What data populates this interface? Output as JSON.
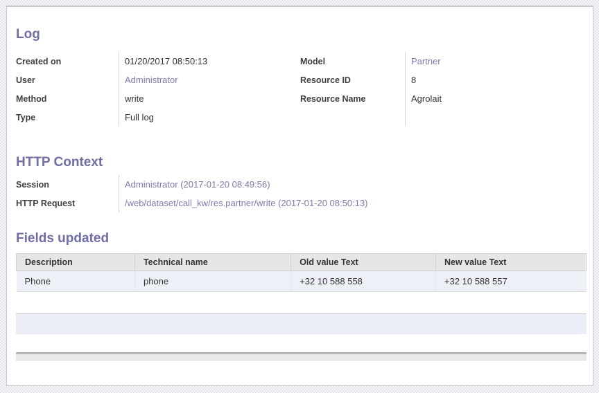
{
  "colors": {
    "section_title": "#6f6ea5",
    "link": "#7c7bad",
    "table_header_bg": "#e6e6e6",
    "table_row_bg": "#eef0f8",
    "panel_bg": "#ffffff"
  },
  "sections": {
    "log": {
      "title": "Log",
      "left_fields": [
        {
          "label": "Created on",
          "value": "01/20/2017 08:50:13"
        },
        {
          "label": "User",
          "value": "Administrator"
        },
        {
          "label": "Method",
          "value": "write"
        },
        {
          "label": "Type",
          "value": "Full log"
        }
      ],
      "right_fields": [
        {
          "label": "Model",
          "value": "Partner"
        },
        {
          "label": "Resource ID",
          "value": "8"
        },
        {
          "label": "Resource Name",
          "value": "Agrolait"
        }
      ]
    },
    "http_context": {
      "title": "HTTP Context",
      "fields": [
        {
          "label": "Session",
          "value": "Administrator (2017-01-20 08:49:56)"
        },
        {
          "label": "HTTP Request",
          "value": "/web/dataset/call_kw/res.partner/write (2017-01-20 08:50:13)"
        }
      ]
    },
    "fields_updated": {
      "title": "Fields updated",
      "table": {
        "columns": [
          "Description",
          "Technical name",
          "Old value Text",
          "New value Text"
        ],
        "rows": [
          [
            "Phone",
            "phone",
            "+32 10 588 558",
            "+32 10 588 557"
          ]
        ]
      }
    }
  }
}
